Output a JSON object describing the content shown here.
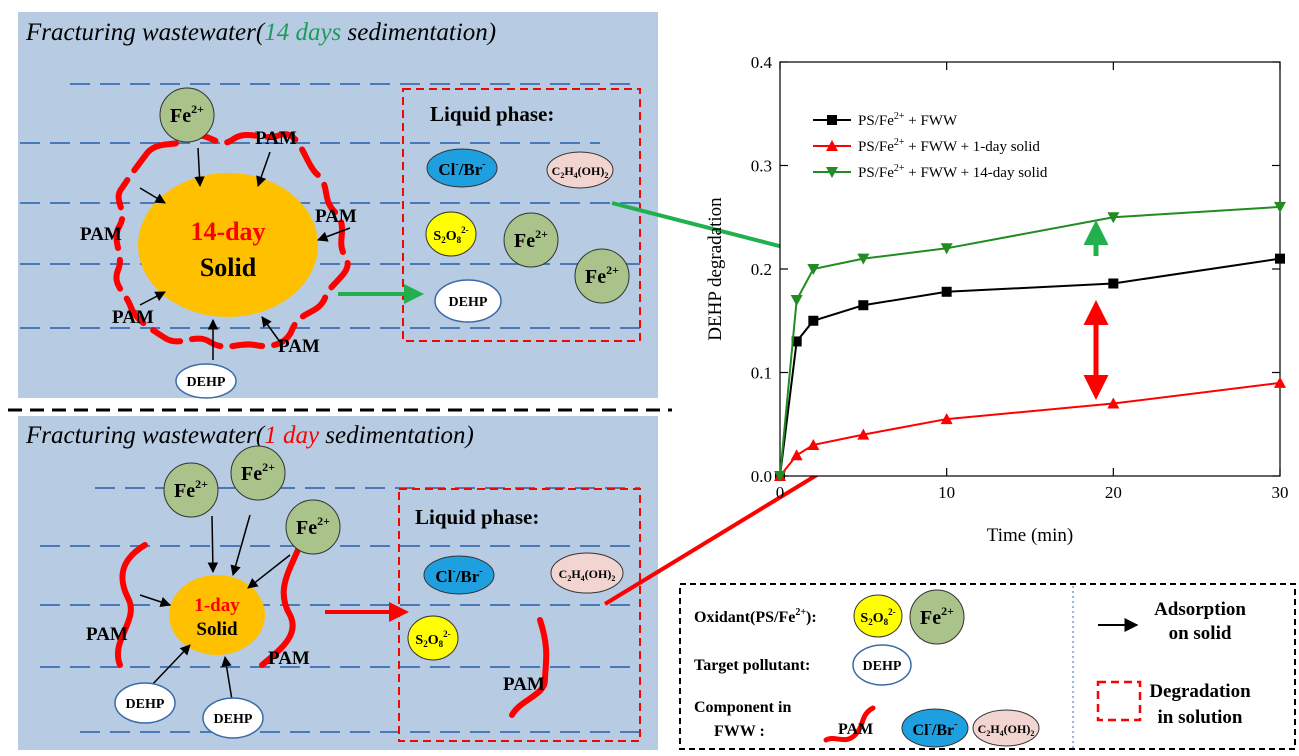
{
  "top_panel": {
    "title_pre": "Fracturing wastewater(",
    "title_highlight": "14 days",
    "title_post": " sedimentation)",
    "solid_line1": "14-day",
    "solid_line2": "Solid",
    "liquid_title": "Liquid phase:"
  },
  "bottom_panel": {
    "title_pre": "Fracturing wastewater(",
    "title_highlight": "1  day",
    "title_post": " sedimentation)",
    "solid_line1": "1-day",
    "solid_line2": "Solid",
    "liquid_title": "Liquid phase:"
  },
  "labels": {
    "pam": "PAM",
    "dehp": "DEHP",
    "fe": "Fe",
    "fe_sup": "2+",
    "cl": "Cl",
    "cl_sup": "-",
    "br": "/Br",
    "br_sup": "-",
    "c2": "C",
    "c2_sub": "2",
    "h4": "H",
    "h4_sub": "4",
    "oh": "(OH)",
    "oh_sub": "2",
    "s": "S",
    "s_sub": "2",
    "o": "O",
    "o_sub": "8",
    "s_sup": "2-"
  },
  "legend": {
    "oxidant_label": "Oxidant(PS/Fe",
    "oxidant_sup": "2+",
    "oxidant_end": "):",
    "target_label": "Target pollutant:",
    "component_line1": "Component in",
    "component_line2": "FWW :",
    "adsorption_line1": "Adsorption",
    "adsorption_line2": "on solid",
    "degradation_line1": "Degradation",
    "degradation_line2": "in solution"
  },
  "chart_data": {
    "type": "line",
    "xlabel": "Time (min)",
    "ylabel": "DEHP degradation",
    "xlim": [
      0,
      30
    ],
    "ylim": [
      0,
      0.4
    ],
    "xticks": [
      0,
      10,
      20,
      30
    ],
    "yticks": [
      0.0,
      0.1,
      0.2,
      0.3,
      0.4
    ],
    "ytick_labels": [
      "0.0",
      "0.1",
      "0.2",
      "0.3",
      "0.4"
    ],
    "legend_position": "top-left",
    "series": [
      {
        "name_pre": "PS/Fe",
        "name_sup": "2+",
        "name_post": " + FWW",
        "color": "#000000",
        "marker": "square",
        "x": [
          0,
          1,
          2,
          5,
          10,
          20,
          30
        ],
        "y": [
          0.0,
          0.13,
          0.15,
          0.165,
          0.178,
          0.186,
          0.21
        ]
      },
      {
        "name_pre": "PS/Fe",
        "name_sup": "2+",
        "name_post": " + FWW + 1-day solid",
        "color": "#ff0000",
        "marker": "triangle-up",
        "x": [
          0,
          1,
          2,
          5,
          10,
          20,
          30
        ],
        "y": [
          0.0,
          0.02,
          0.03,
          0.04,
          0.055,
          0.07,
          0.09
        ]
      },
      {
        "name_pre": "PS/Fe",
        "name_sup": "2+",
        "name_post": " + FWW + 14-day solid",
        "color": "#228b22",
        "marker": "triangle-down",
        "x": [
          0,
          1,
          2,
          5,
          10,
          20,
          30
        ],
        "y": [
          0.0,
          0.17,
          0.2,
          0.21,
          0.22,
          0.25,
          0.26
        ]
      }
    ]
  },
  "colors": {
    "panel_bg": "#b7cbe2",
    "solid": "#ffc000",
    "pam": "#ff0000",
    "fe_fill": "#a9c38b",
    "cl_fill": "#1ea0e0",
    "c2h4_fill": "#f2d4d0",
    "s2o8_fill": "#ffff00",
    "green_arrow": "#22b04e",
    "red_arrow": "#ff0000",
    "water_line": "#4a78b8",
    "title_green": "#1e9a5a"
  }
}
